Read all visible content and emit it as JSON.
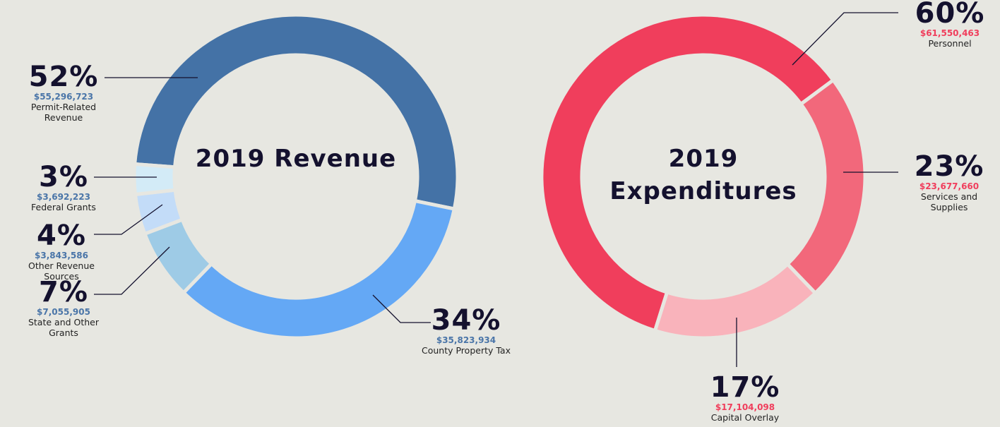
{
  "chart_data": [
    {
      "type": "pie",
      "donut": true,
      "title": "2019 Revenue",
      "categories": [
        "Permit-Related Revenue",
        "County Property Tax",
        "State and Other Grants",
        "Other Revenue Sources",
        "Federal Grants"
      ],
      "values": [
        52,
        34,
        7,
        4,
        3
      ],
      "value_labels": [
        "52%",
        "34%",
        "7%",
        "4%",
        "3%"
      ],
      "amount_labels": [
        "$55,296,723",
        "$35,823,934",
        "$7,055,905",
        "$3,843,586",
        "$3,692,223"
      ],
      "colors": [
        "#4472a6",
        "#64a8f5",
        "#9ecbe6",
        "#c3dcf8",
        "#d3ebf7"
      ],
      "amount_color": "#4a75a8"
    },
    {
      "type": "pie",
      "donut": true,
      "title": "2019 Expenditures",
      "categories": [
        "Personnel",
        "Services and Supplies",
        "Capital Overlay"
      ],
      "values": [
        60,
        23,
        17
      ],
      "value_labels": [
        "60%",
        "23%",
        "17%"
      ],
      "amount_labels": [
        "$61,550,463",
        "$23,677,660",
        "$17,104,098"
      ],
      "colors": [
        "#f03e5c",
        "#f2687b",
        "#f9b3bb"
      ],
      "amount_color": "#f03e5c"
    }
  ]
}
